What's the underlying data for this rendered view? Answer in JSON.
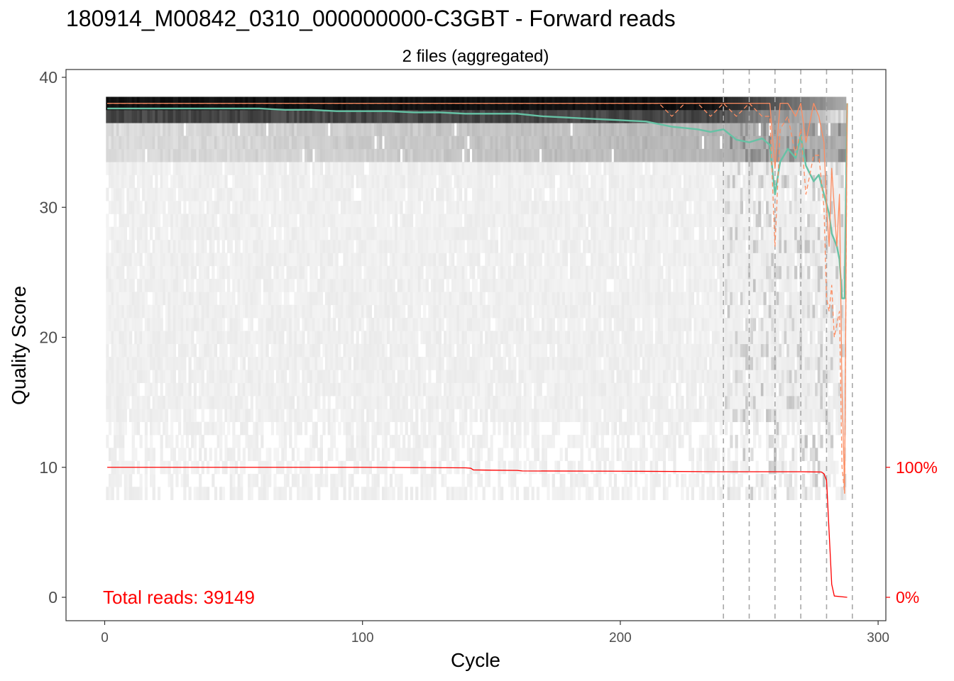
{
  "title": "180914_M00842_0310_000000000-C3GBT - Forward reads",
  "chart_data": {
    "type": "heatmap",
    "title": "180914_M00842_0310_000000000-C3GBT - Forward reads",
    "subtitle": "2 files (aggregated)",
    "xlabel": "Cycle",
    "ylabel": "Quality Score",
    "xlim": [
      -15,
      303
    ],
    "ylim": [
      -1.8,
      40.6
    ],
    "x_ticks": [
      "0",
      "100",
      "200",
      "300"
    ],
    "y_ticks": [
      "0",
      "10",
      "20",
      "30",
      "40"
    ],
    "right_axis_ticks": [
      "0%",
      "100%"
    ],
    "annotation": "Total reads: 39149",
    "grid": false,
    "heatmap_description": "density of quality scores per cycle in grayscale; dense black band at Q 37-38",
    "vertical_reference_lines": [
      240,
      250,
      260,
      270,
      280,
      290
    ],
    "series": [
      {
        "color": "#66c2a5",
        "style": "solid",
        "x": [
          1,
          10,
          20,
          30,
          40,
          50,
          60,
          70,
          80,
          90,
          100,
          110,
          120,
          130,
          140,
          150,
          160,
          170,
          180,
          190,
          200,
          210,
          215,
          220,
          225,
          230,
          235,
          240,
          245,
          250,
          255,
          258,
          260,
          262,
          265,
          268,
          270,
          272,
          275,
          277,
          279,
          281,
          282,
          283,
          284,
          285,
          286,
          287,
          288
        ],
        "y": [
          37.6,
          37.6,
          37.6,
          37.6,
          37.6,
          37.6,
          37.6,
          37.5,
          37.5,
          37.4,
          37.4,
          37.4,
          37.3,
          37.3,
          37.2,
          37.2,
          37.2,
          37.0,
          36.9,
          36.8,
          36.7,
          36.6,
          36.4,
          36.2,
          36.1,
          36.0,
          35.8,
          36.0,
          35.2,
          35.0,
          35.3,
          34.8,
          31.0,
          33.5,
          34.5,
          33.8,
          35.5,
          33.2,
          32.0,
          32.5,
          31.0,
          29.5,
          28.0,
          27.5,
          27.0,
          26.0,
          23.0,
          23.0,
          38.0
        ]
      },
      {
        "color": "#fc8d62",
        "style": "solid",
        "x": [
          1,
          50,
          100,
          150,
          200,
          210,
          215,
          220,
          225,
          230,
          235,
          240,
          245,
          250,
          255,
          258,
          260,
          262,
          265,
          268,
          270,
          272,
          275,
          277,
          279,
          280,
          281,
          282,
          283,
          284,
          285,
          286,
          287,
          288
        ],
        "y": [
          38,
          38,
          38,
          38,
          38,
          38,
          38,
          38,
          38,
          38,
          38,
          38,
          38,
          38,
          38,
          38,
          33,
          38,
          38,
          37,
          38,
          35,
          38,
          37,
          35,
          30,
          27,
          33,
          30,
          27,
          31,
          16,
          8,
          38
        ]
      },
      {
        "color": "#fc8d62",
        "style": "dashed",
        "x": [
          1,
          50,
          100,
          150,
          200,
          210,
          215,
          220,
          225,
          230,
          235,
          240,
          245,
          250,
          255,
          258,
          260,
          262,
          265,
          268,
          270,
          272,
          275,
          277,
          279,
          280,
          281,
          282,
          283,
          284,
          285,
          286,
          287,
          288
        ],
        "y": [
          38,
          38,
          38,
          38,
          38,
          38,
          38,
          37,
          38,
          38,
          37,
          38,
          37,
          38,
          37,
          37,
          27,
          36,
          37,
          34,
          36,
          31,
          34,
          34,
          30,
          23,
          22,
          24,
          20,
          21,
          22,
          10,
          8,
          38
        ]
      },
      {
        "color": "#ff0000",
        "style": "solid",
        "name": "reads %",
        "x": [
          1,
          50,
          100,
          140,
          142,
          143,
          150,
          160,
          162,
          200,
          240,
          270,
          278,
          279,
          280,
          281,
          282,
          283,
          288
        ],
        "y": [
          10,
          10,
          10,
          9.96,
          9.93,
          9.8,
          9.78,
          9.76,
          9.72,
          9.7,
          9.66,
          9.66,
          9.64,
          9.5,
          9.0,
          5.0,
          1.0,
          0.1,
          0.0
        ]
      }
    ]
  }
}
